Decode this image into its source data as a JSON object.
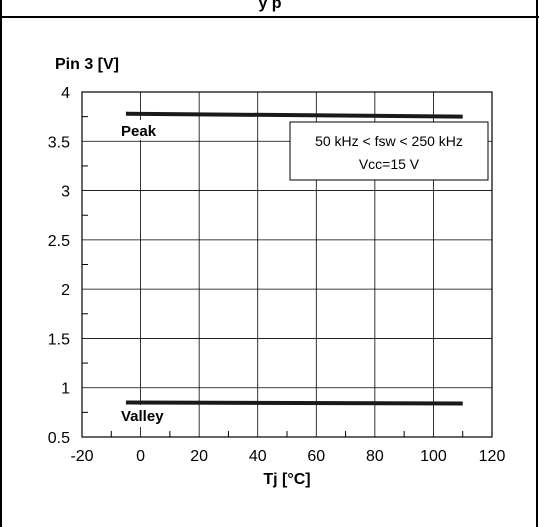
{
  "header": {
    "partial_title": "y      p"
  },
  "chart_data": {
    "type": "line",
    "title": "",
    "xlabel": "Tj [°C]",
    "ylabel": "Pin 3 [V]",
    "xlim": [
      -20,
      120
    ],
    "ylim": [
      0.5,
      4
    ],
    "xticks": [
      -20,
      0,
      20,
      40,
      60,
      80,
      100,
      120
    ],
    "yticks": [
      0.5,
      1,
      1.5,
      2,
      2.5,
      3,
      3.5,
      4
    ],
    "xtick_labels": [
      "-20",
      "0",
      "20",
      "40",
      "60",
      "80",
      "100",
      "120"
    ],
    "ytick_labels": [
      "0.5",
      "1",
      "1.5",
      "2",
      "2.5",
      "3",
      "3.5",
      "4"
    ],
    "grid": true,
    "series": [
      {
        "name": "Peak",
        "x": [
          -5,
          110
        ],
        "y": [
          3.78,
          3.75
        ]
      },
      {
        "name": "Valley",
        "x": [
          -5,
          110
        ],
        "y": [
          0.85,
          0.84
        ]
      }
    ],
    "annotation": {
      "line1": "50 kHz < fsw < 250 kHz",
      "line2": "Vcc=15 V"
    }
  }
}
